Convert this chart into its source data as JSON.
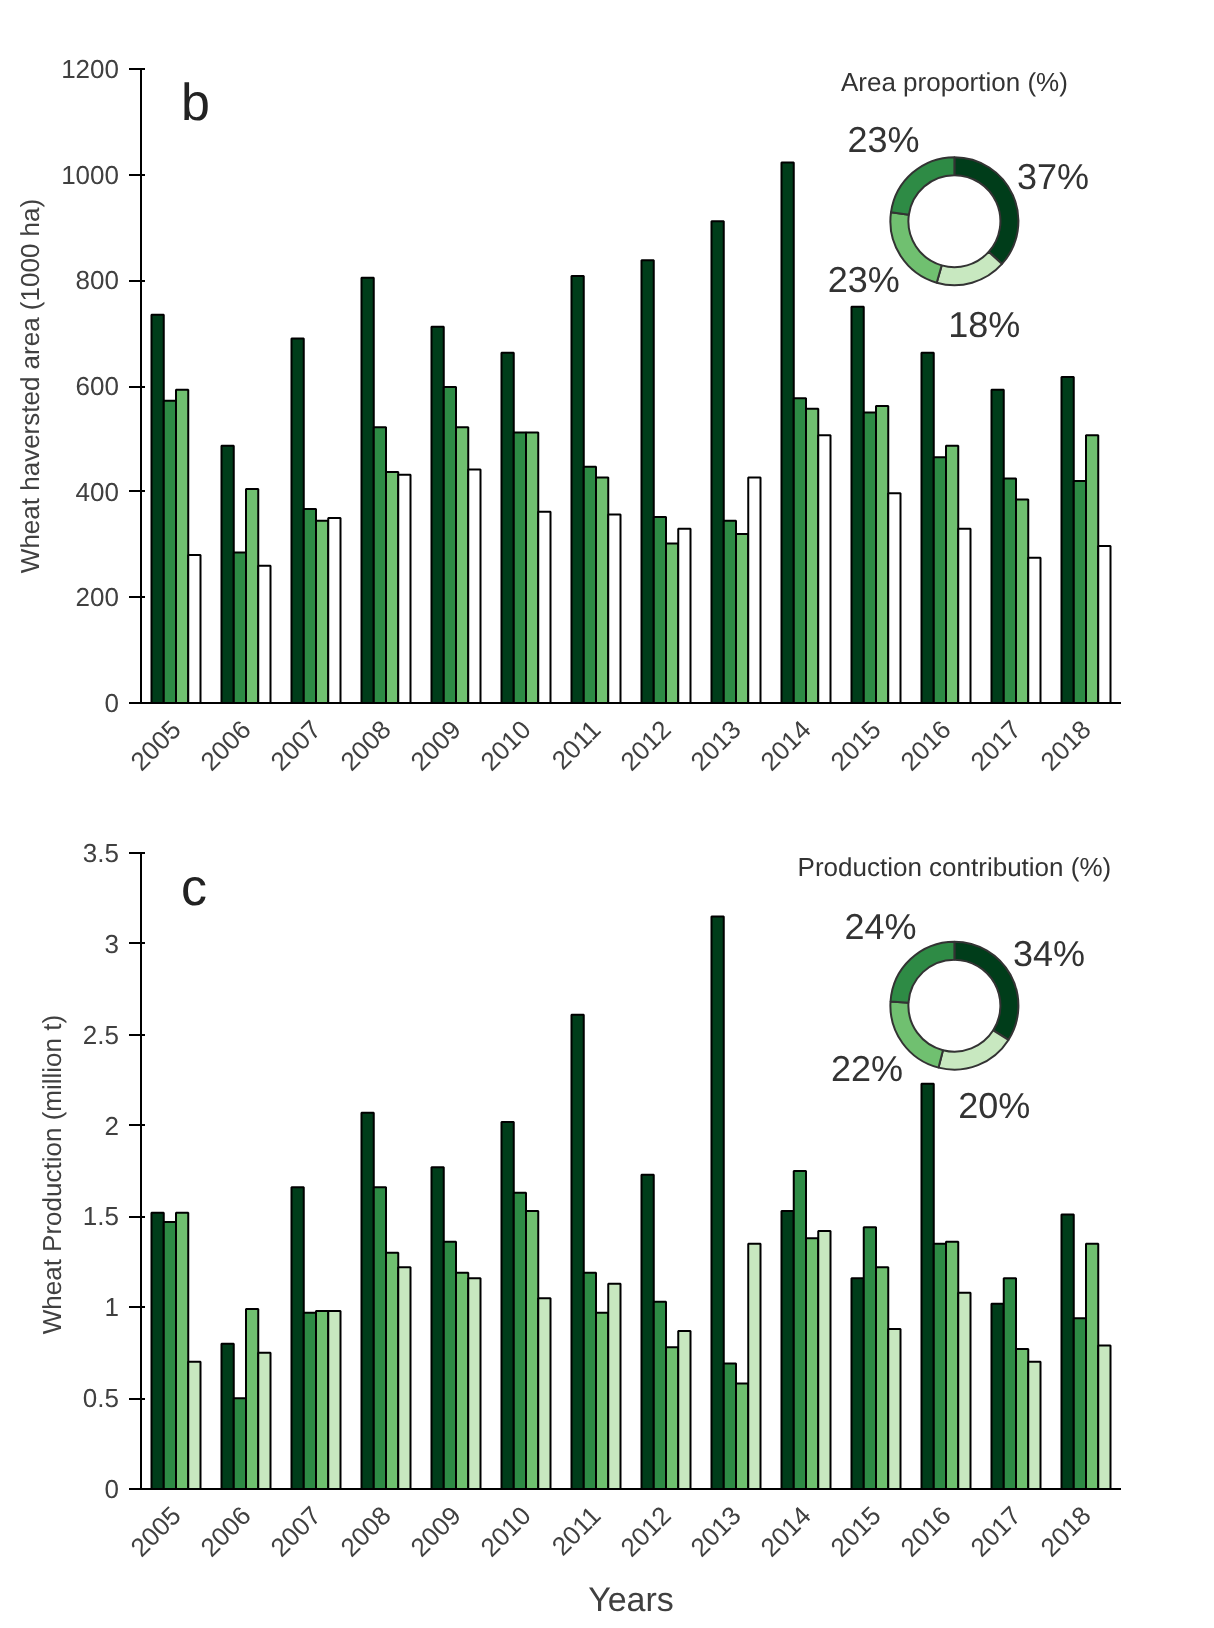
{
  "chart_data": [
    {
      "type": "bar",
      "title": "b",
      "ylabel": "Wheat haversted area (1000 ha)",
      "categories": [
        "2005",
        "2006",
        "2007",
        "2008",
        "2009",
        "2010",
        "2011",
        "2012",
        "2013",
        "2014",
        "2015",
        "2016",
        "2017",
        "2018"
      ],
      "series": [
        {
          "color": "#003d1a",
          "values": [
            735,
            487,
            690,
            805,
            712,
            663,
            808,
            838,
            912,
            1023,
            750,
            663,
            593,
            617
          ]
        },
        {
          "color": "#2e8b45",
          "values": [
            572,
            285,
            367,
            522,
            598,
            512,
            447,
            352,
            345,
            577,
            550,
            465,
            425,
            420
          ]
        },
        {
          "color": "#70c070",
          "values": [
            593,
            405,
            345,
            437,
            522,
            512,
            427,
            302,
            320,
            557,
            562,
            487,
            385,
            507
          ]
        },
        {
          "color": "#ffffff",
          "values": [
            280,
            260,
            350,
            432,
            442,
            362,
            357,
            330,
            427,
            507,
            397,
            330,
            275,
            297
          ]
        }
      ],
      "ylim": [
        0,
        1200
      ],
      "yticks": [
        0,
        200,
        400,
        600,
        800,
        1000,
        1200
      ]
    },
    {
      "type": "donut",
      "title": "Area proportion (%)",
      "categories": [
        null,
        null,
        null,
        null
      ],
      "values": [
        37,
        18,
        23,
        23
      ],
      "colors": [
        "#003d1a",
        "#c8e8c0",
        "#70c070",
        "#2e8b45"
      ],
      "value_labels": [
        "37%",
        "18%",
        "23%",
        "23%"
      ]
    },
    {
      "type": "bar",
      "title": "c",
      "xlabel": "Years",
      "ylabel": "Wheat Production  (million t)",
      "categories": [
        "2005",
        "2006",
        "2007",
        "2008",
        "2009",
        "2010",
        "2011",
        "2012",
        "2013",
        "2014",
        "2015",
        "2016",
        "2017",
        "2018"
      ],
      "series": [
        {
          "color": "#003d1a",
          "values": [
            1.52,
            0.8,
            1.66,
            2.07,
            1.77,
            2.02,
            2.61,
            1.73,
            3.15,
            1.53,
            1.16,
            2.23,
            1.02,
            1.51
          ]
        },
        {
          "color": "#2e8b45",
          "values": [
            1.47,
            0.5,
            0.97,
            1.66,
            1.36,
            1.63,
            1.19,
            1.03,
            0.69,
            1.75,
            1.44,
            1.35,
            1.16,
            0.94
          ]
        },
        {
          "color": "#70c070",
          "values": [
            1.52,
            0.99,
            0.98,
            1.3,
            1.19,
            1.53,
            0.97,
            0.78,
            0.58,
            1.38,
            1.22,
            1.36,
            0.77,
            1.35
          ]
        },
        {
          "color": "#c8e8c0",
          "values": [
            0.7,
            0.75,
            0.98,
            1.22,
            1.16,
            1.05,
            1.13,
            0.87,
            1.35,
            1.42,
            0.88,
            1.08,
            0.7,
            0.79
          ]
        }
      ],
      "ylim": [
        0,
        3.5
      ],
      "yticks": [
        0,
        0.5,
        1,
        1.5,
        2,
        2.5,
        3,
        3.5
      ]
    },
    {
      "type": "donut",
      "title": "Production contribution (%)",
      "categories": [
        null,
        null,
        null,
        null
      ],
      "values": [
        34,
        20,
        22,
        24
      ],
      "colors": [
        "#003d1a",
        "#c8e8c0",
        "#70c070",
        "#2e8b45"
      ],
      "value_labels": [
        "34%",
        "20%",
        "22%",
        "24%"
      ]
    }
  ]
}
